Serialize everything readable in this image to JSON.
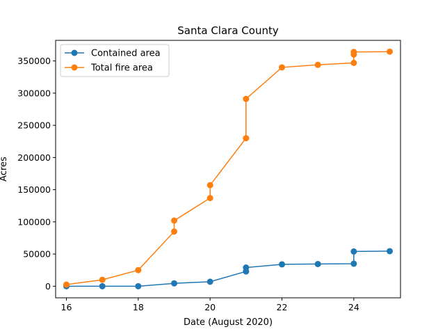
{
  "chart_data": {
    "type": "line",
    "title": "Santa Clara County",
    "xlabel": "Date (August 2020)",
    "ylabel": "Acres",
    "xlim": [
      15.7,
      25.3
    ],
    "ylim": [
      -18000,
      382000
    ],
    "xticks": [
      16,
      18,
      20,
      22,
      24
    ],
    "yticks": [
      0,
      50000,
      100000,
      150000,
      200000,
      250000,
      300000,
      350000
    ],
    "grid": false,
    "legend_position": "top-left",
    "series": [
      {
        "name": "Contained area",
        "color": "#1f77b4",
        "x": [
          16,
          17,
          18,
          19,
          20,
          21,
          21,
          22,
          23,
          24,
          24,
          25
        ],
        "y": [
          0,
          0,
          0,
          4500,
          7000,
          23000,
          29000,
          34000,
          34500,
          35000,
          54000,
          54500
        ]
      },
      {
        "name": "Total fire area",
        "color": "#ff7f0e",
        "x": [
          16,
          17,
          18,
          19,
          19,
          20,
          20,
          21,
          21,
          22,
          23,
          24,
          24,
          24,
          25
        ],
        "y": [
          2500,
          10000,
          25000,
          85000,
          102000,
          137000,
          157000,
          230000,
          291000,
          340000,
          344000,
          347000,
          360000,
          364000,
          364500
        ]
      }
    ]
  }
}
